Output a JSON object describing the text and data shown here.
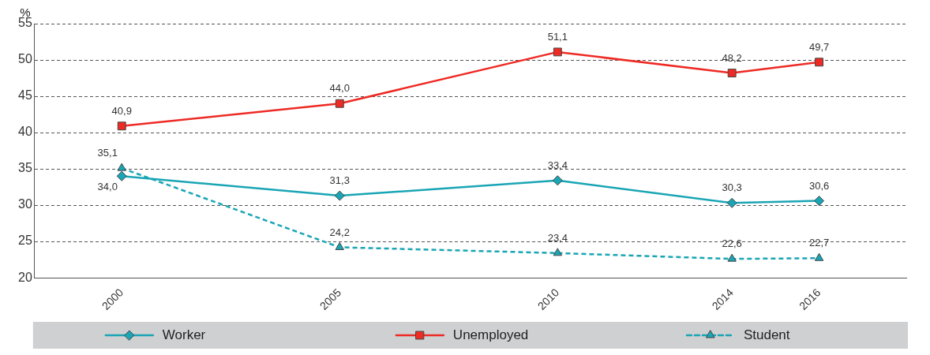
{
  "chart_data": {
    "type": "line",
    "ylabel": "%",
    "x": [
      2000,
      2005,
      2010,
      2014,
      2016
    ],
    "xlim": [
      1998,
      2018
    ],
    "xticks": [
      2000,
      2005,
      2010,
      2014,
      2016
    ],
    "ylim": [
      20,
      55
    ],
    "yticks": [
      20,
      25,
      30,
      35,
      40,
      45,
      50,
      55
    ],
    "grid": "y",
    "legend": "bottom",
    "series": [
      {
        "name": "Worker",
        "color": "#1aa5b5",
        "marker": "diamond",
        "line_style": "solid",
        "values": [
          34.0,
          31.3,
          33.4,
          30.3,
          30.6
        ],
        "value_labels": [
          "34,0",
          "31,3",
          "33,4",
          "30,3",
          "30,6"
        ]
      },
      {
        "name": "Unemployed",
        "color": "#ee2a24",
        "marker": "square",
        "line_style": "solid",
        "values": [
          40.9,
          44.0,
          51.1,
          48.2,
          49.7
        ],
        "value_labels": [
          "40,9",
          "44,0",
          "51,1",
          "48,2",
          "49,7"
        ]
      },
      {
        "name": "Student",
        "color": "#1aa5b5",
        "marker": "triangle",
        "line_style": "dashed",
        "values": [
          35.1,
          24.2,
          23.4,
          22.6,
          22.7
        ],
        "value_labels": [
          "35,1",
          "24,2",
          "23,4",
          "22,6",
          "22,7"
        ]
      }
    ]
  }
}
